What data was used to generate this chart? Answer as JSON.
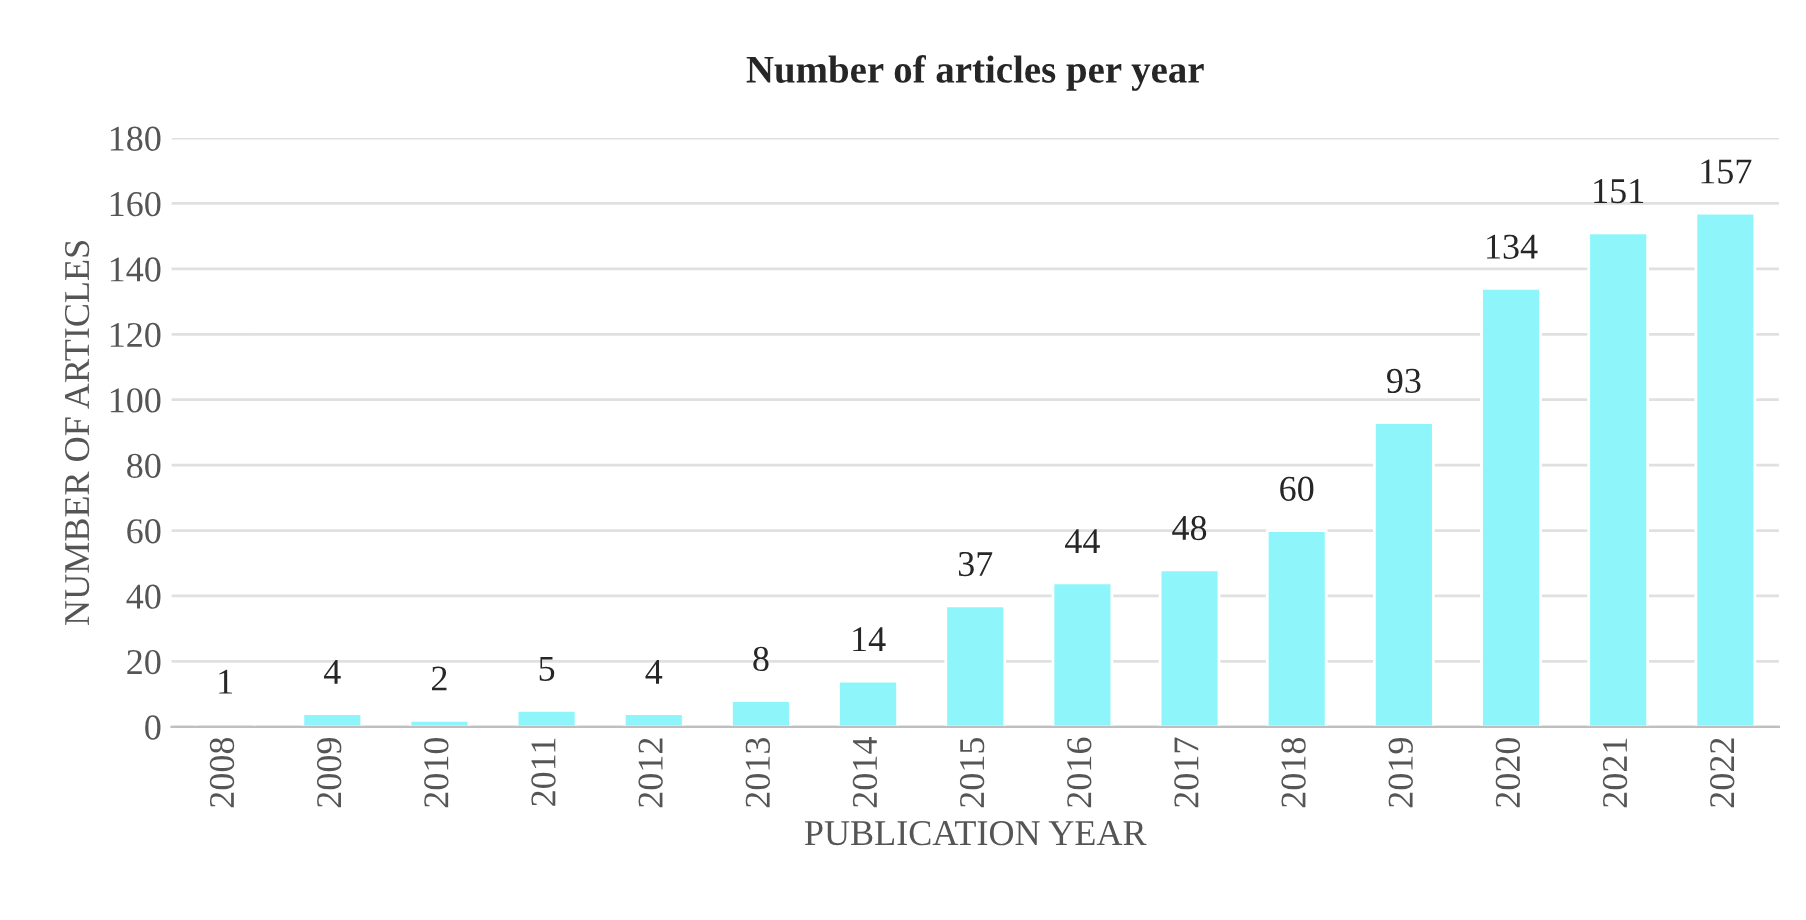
{
  "chart_data": {
    "type": "bar",
    "title": "Number of articles per year",
    "xlabel": "PUBLICATION YEAR",
    "ylabel": "NUMBER OF ARTICLES",
    "categories": [
      "2008",
      "2009",
      "2010",
      "2011",
      "2012",
      "2013",
      "2014",
      "2015",
      "2016",
      "2017",
      "2018",
      "2019",
      "2020",
      "2021",
      "2022"
    ],
    "values": [
      1,
      4,
      2,
      5,
      4,
      8,
      14,
      37,
      44,
      48,
      60,
      93,
      134,
      151,
      157
    ],
    "color": "#8ef6fb",
    "ylim": [
      0,
      180
    ],
    "yticks": [
      0,
      20,
      40,
      60,
      80,
      100,
      120,
      140,
      160,
      180
    ],
    "grid": "y",
    "data_labels": true,
    "legend": false
  }
}
